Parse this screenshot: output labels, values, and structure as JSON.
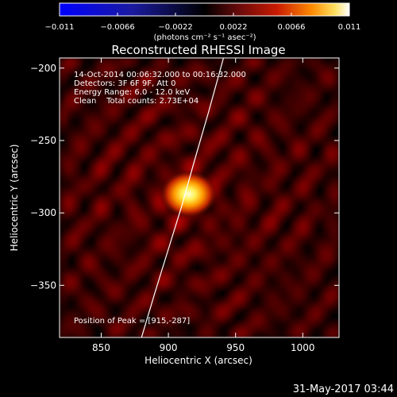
{
  "chart_data": {
    "type": "heatmap",
    "title": "Reconstructed RHESSI Image",
    "xlabel": "Heliocentric X (arcsec)",
    "ylabel": "Heliocentric Y (arcsec)",
    "xlim": [
      819,
      1027
    ],
    "ylim": [
      -386,
      -193
    ],
    "x_ticks": [
      850,
      900,
      950,
      1000
    ],
    "y_ticks": [
      -200,
      -250,
      -300,
      -350
    ],
    "x_tick_labels": [
      "850",
      "900",
      "950",
      "1000"
    ],
    "y_tick_labels": [
      "−200",
      "−250",
      "−300",
      "−350"
    ],
    "colorbar": {
      "range": [
        -0.011,
        0.011
      ],
      "ticks": [
        -0.011,
        -0.0066,
        -0.0022,
        0.0022,
        0.0066,
        0.011
      ],
      "tick_labels": [
        "−0.011",
        "−0.0066",
        "−0.0022",
        "0.0022",
        "0.0066",
        "0.011"
      ],
      "unit_label": "(photons cm⁻² s⁻¹ asec⁻²)"
    },
    "annotations": [
      "14-Oct-2014 00:06:32.000 to 00:16:32.000",
      "Detectors: 3F 6F 9F, Att 0",
      "Energy Range: 6.0 - 12.0 keV",
      "Clean    Total counts: 2.73E+04"
    ],
    "peak_label": "Position of Peak = [915,-287]",
    "peak": {
      "x": 915,
      "y": -287,
      "value": 0.011
    },
    "limb_curve": [
      [
        880,
        -386
      ],
      [
        890,
        -355
      ],
      [
        900,
        -325
      ],
      [
        910,
        -295
      ],
      [
        920,
        -262
      ],
      [
        930,
        -230
      ],
      [
        941,
        -193
      ]
    ],
    "background_value": 0.0015
  },
  "footer": {
    "date": "31-May-2017 03:44"
  }
}
